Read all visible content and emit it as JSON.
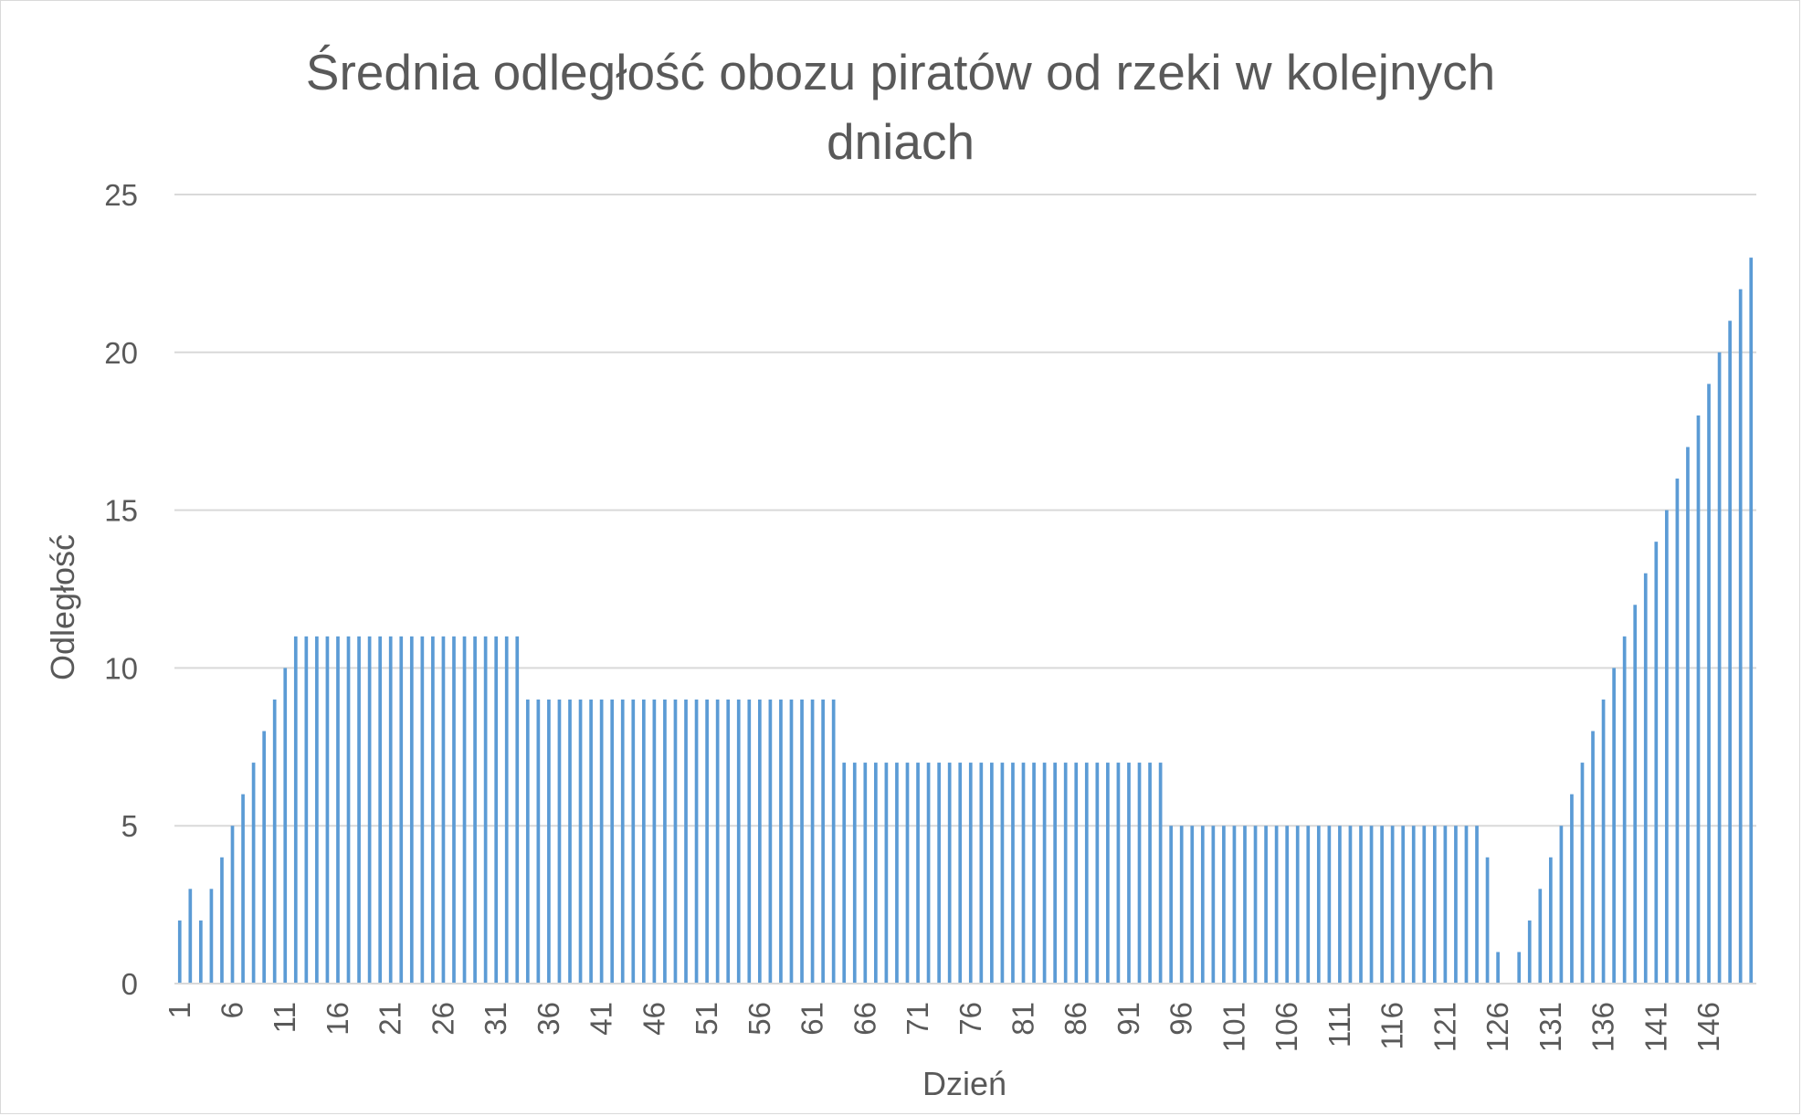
{
  "chart_data": {
    "type": "bar",
    "title_lines": [
      "Średnia odległość obozu piratów od rzeki w kolejnych",
      "dniach"
    ],
    "xlabel": "Dzień",
    "ylabel": "Odległość",
    "ylim": [
      0,
      25
    ],
    "yticks": [
      "0",
      "5",
      "10",
      "15",
      "20",
      "25"
    ],
    "grid": true,
    "legend": "none",
    "bar_color": "#5b9bd5",
    "x_first_day": 1,
    "x_label_every": 5,
    "values": [
      2,
      3,
      2,
      3,
      4,
      5,
      6,
      7,
      8,
      9,
      10,
      11,
      11,
      11,
      11,
      11,
      11,
      11,
      11,
      11,
      11,
      11,
      11,
      11,
      11,
      11,
      11,
      11,
      11,
      11,
      11,
      11,
      11,
      9,
      9,
      9,
      9,
      9,
      9,
      9,
      9,
      9,
      9,
      9,
      9,
      9,
      9,
      9,
      9,
      9,
      9,
      9,
      9,
      9,
      9,
      9,
      9,
      9,
      9,
      9,
      9,
      9,
      9,
      7,
      7,
      7,
      7,
      7,
      7,
      7,
      7,
      7,
      7,
      7,
      7,
      7,
      7,
      7,
      7,
      7,
      7,
      7,
      7,
      7,
      7,
      7,
      7,
      7,
      7,
      7,
      7,
      7,
      7,
      7,
      5,
      5,
      5,
      5,
      5,
      5,
      5,
      5,
      5,
      5,
      5,
      5,
      5,
      5,
      5,
      5,
      5,
      5,
      5,
      5,
      5,
      5,
      5,
      5,
      5,
      5,
      5,
      5,
      5,
      5,
      4,
      1,
      0,
      1,
      2,
      3,
      4,
      5,
      6,
      7,
      8,
      9,
      10,
      11,
      12,
      13,
      14,
      15,
      16,
      17,
      18,
      19,
      20,
      21,
      22,
      23
    ]
  }
}
